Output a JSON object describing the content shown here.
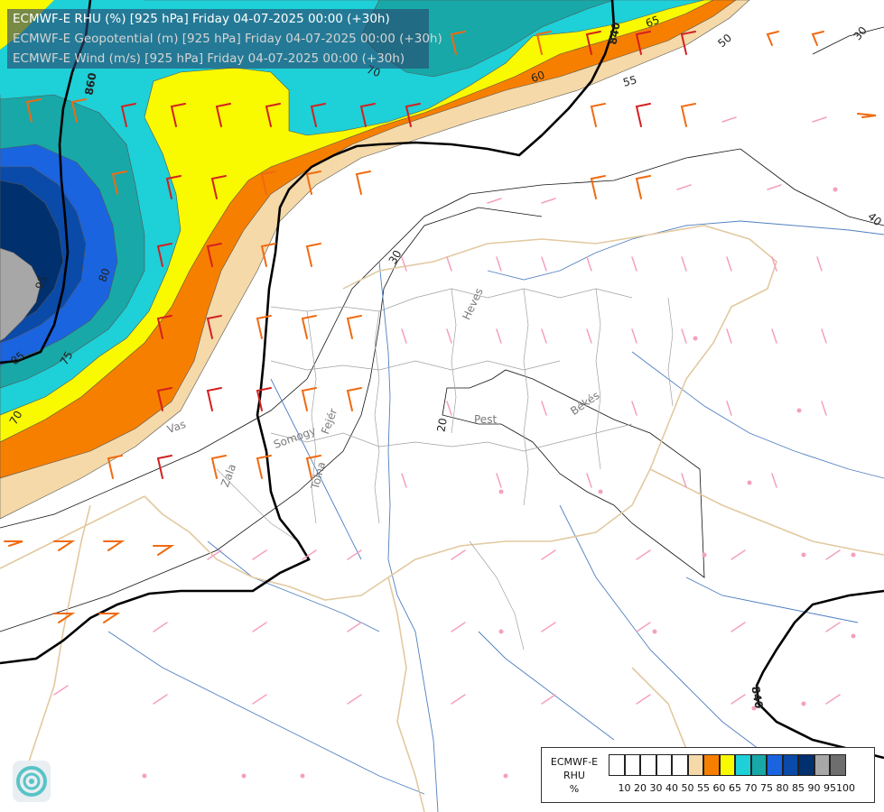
{
  "header": {
    "line1": "ECMWF-E RHU (%) [925 hPa] Friday 04-07-2025 00:00 (+30h)",
    "line2": "ECMWF-E Geopotential (m) [925 hPa] Friday 04-07-2025 00:00 (+30h)",
    "line3": "ECMWF-E Wind (m/s) [925 hPa] Friday 04-07-2025 00:00 (+30h)"
  },
  "legend": {
    "title_lines": [
      "ECMWF-E",
      "RHU",
      "%"
    ],
    "ticks": [
      "10",
      "20",
      "30",
      "40",
      "50",
      "55",
      "60",
      "65",
      "70",
      "75",
      "80",
      "85",
      "90",
      "95",
      "100"
    ],
    "colors": [
      "#ffffff",
      "#ffffff",
      "#ffffff",
      "#ffffff",
      "#ffffff",
      "#f5d9a8",
      "#f77f00",
      "#f9f900",
      "#1ed0d7",
      "#18a8a8",
      "#1a64e0",
      "#0a4aa8",
      "#00306e",
      "#a7a7a7",
      "#6e6e6e"
    ]
  },
  "places": {
    "vas": "Vas",
    "zala": "Zala",
    "somogy": "Somogy",
    "fejer": "Fejér",
    "tolna": "Tolna",
    "pest": "Pest",
    "heves": "Heves",
    "bekes": "Békés"
  },
  "contour_labels": {
    "hgt_840_top": "840",
    "hgt_840_bottom": "840",
    "hgt_860": "860",
    "rh_65": "65",
    "rh_60": "60",
    "rh_55": "55",
    "rh_50": "50",
    "rh_70": "70",
    "rh_70b": "70",
    "rh_75": "75",
    "rh_80": "80",
    "rh_85": "85",
    "rh_95": "95",
    "rh_30_top": "30",
    "rh_30": "30",
    "rh_20": "20",
    "rh_40": "40"
  },
  "colors": {
    "rh55": "#f5d9a8",
    "rh60": "#f77f00",
    "rh65": "#f9f900",
    "rh70": "#1ed0d7",
    "rh75": "#18a8a8",
    "rh80": "#1a64e0",
    "rh85": "#0a4aa8",
    "rh90": "#00306e",
    "rh95": "#a7a7a7",
    "river": "#4f7fc0",
    "border": "#e2c9a0",
    "county": "#9a9a9a",
    "geopotential": "#000000",
    "wind_strong": "#d32020",
    "wind_mid": "#f06a10",
    "wind_weak": "#f4a0c0"
  }
}
